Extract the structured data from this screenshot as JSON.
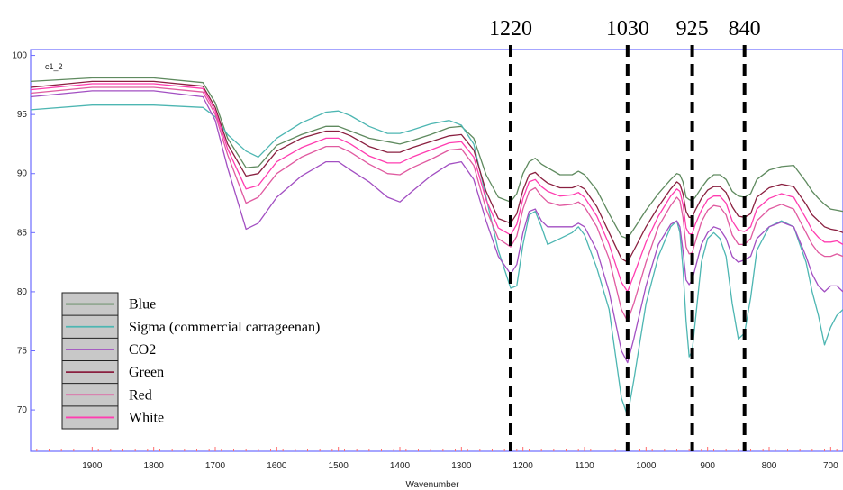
{
  "chart_data": {
    "type": "line",
    "panel_label": "c1_2",
    "xlabel": "Wavenumber",
    "ylabel": "",
    "xlim": [
      2000,
      680
    ],
    "ylim": [
      66.5,
      100.5
    ],
    "x_ticks": [
      1900,
      1800,
      1700,
      1600,
      1500,
      1400,
      1300,
      1200,
      1100,
      1000,
      900,
      800,
      700
    ],
    "y_ticks": [
      70,
      75,
      80,
      85,
      90,
      95,
      100
    ],
    "markers": [
      {
        "label": "1220",
        "x": 1220
      },
      {
        "label": "1030",
        "x": 1030
      },
      {
        "label": "925",
        "x": 925
      },
      {
        "label": "840",
        "x": 840
      }
    ],
    "x": [
      2000,
      1900,
      1800,
      1720,
      1700,
      1680,
      1650,
      1630,
      1600,
      1560,
      1520,
      1500,
      1480,
      1450,
      1420,
      1400,
      1380,
      1350,
      1320,
      1300,
      1280,
      1260,
      1240,
      1220,
      1210,
      1200,
      1190,
      1180,
      1170,
      1160,
      1140,
      1120,
      1110,
      1100,
      1080,
      1060,
      1040,
      1030,
      1020,
      1000,
      980,
      960,
      950,
      945,
      940,
      935,
      930,
      925,
      920,
      910,
      900,
      890,
      880,
      870,
      860,
      850,
      840,
      830,
      820,
      800,
      780,
      760,
      740,
      730,
      720,
      710,
      700,
      690,
      680
    ],
    "series": [
      {
        "name": "Blue",
        "color": "#5f8a5f",
        "values": [
          97.8,
          98.1,
          98.1,
          97.7,
          96.0,
          93.0,
          90.5,
          90.6,
          92.4,
          93.3,
          94.0,
          94.0,
          93.6,
          93.0,
          92.7,
          92.5,
          92.8,
          93.3,
          93.9,
          94.0,
          93.0,
          89.9,
          88.0,
          87.6,
          88.3,
          90.0,
          91.0,
          91.3,
          90.8,
          90.5,
          89.9,
          89.9,
          90.2,
          89.9,
          88.6,
          86.6,
          84.7,
          84.5,
          85.3,
          86.9,
          88.3,
          89.5,
          90.0,
          89.9,
          89.3,
          88.0,
          87.8,
          87.7,
          88.0,
          88.8,
          89.5,
          89.9,
          89.9,
          89.5,
          88.5,
          88.1,
          88.0,
          88.3,
          89.5,
          90.3,
          90.6,
          90.7,
          89.3,
          88.5,
          87.9,
          87.4,
          87.0,
          86.9,
          86.8
        ]
      },
      {
        "name": "Sigma (commercial carrageenan)",
        "color": "#4db6b2",
        "values": [
          95.4,
          95.8,
          95.8,
          95.6,
          94.8,
          93.3,
          91.9,
          91.4,
          93.0,
          94.3,
          95.2,
          95.3,
          94.9,
          94.0,
          93.4,
          93.4,
          93.7,
          94.2,
          94.5,
          94.1,
          92.5,
          88.0,
          83.5,
          80.3,
          80.5,
          84.0,
          86.5,
          86.8,
          85.5,
          84.0,
          84.5,
          85.0,
          85.5,
          84.8,
          82.0,
          78.5,
          71.0,
          69.5,
          72.5,
          79.0,
          83.0,
          85.5,
          86.0,
          85.0,
          82.0,
          77.5,
          74.5,
          75.0,
          77.5,
          82.5,
          84.5,
          85.0,
          84.5,
          83.0,
          79.0,
          76.0,
          76.5,
          79.5,
          83.5,
          85.5,
          86.0,
          85.5,
          82.5,
          80.0,
          78.0,
          75.5,
          77.0,
          78.0,
          78.5
        ]
      },
      {
        "name": "CO2",
        "color": "#a24fc2",
        "values": [
          96.5,
          97.0,
          97.0,
          96.5,
          94.5,
          90.5,
          85.3,
          85.8,
          88.0,
          89.8,
          91.0,
          91.0,
          90.3,
          89.3,
          88.0,
          87.6,
          88.5,
          89.8,
          90.8,
          91.0,
          89.5,
          86.0,
          83.0,
          81.5,
          82.3,
          85.0,
          86.8,
          87.0,
          86.0,
          85.5,
          85.5,
          85.5,
          85.8,
          85.5,
          83.5,
          80.0,
          75.0,
          74.0,
          76.0,
          80.5,
          84.0,
          85.7,
          86.0,
          85.5,
          83.5,
          81.0,
          80.6,
          81.0,
          82.0,
          84.0,
          85.0,
          85.5,
          85.3,
          84.5,
          83.0,
          82.5,
          82.7,
          83.0,
          84.5,
          85.5,
          85.9,
          85.5,
          83.0,
          81.5,
          80.5,
          80.0,
          80.5,
          80.5,
          80.0
        ]
      },
      {
        "name": "Green",
        "color": "#8a2040",
        "values": [
          97.3,
          97.8,
          97.8,
          97.4,
          95.6,
          92.5,
          89.8,
          90.0,
          91.9,
          93.0,
          93.6,
          93.6,
          93.2,
          92.3,
          91.8,
          91.8,
          92.2,
          92.7,
          93.2,
          93.3,
          92.0,
          88.5,
          86.2,
          85.8,
          86.6,
          88.6,
          89.9,
          90.1,
          89.6,
          89.2,
          88.8,
          88.8,
          89.0,
          88.7,
          87.2,
          85.0,
          82.8,
          82.5,
          83.5,
          85.5,
          87.2,
          88.7,
          89.3,
          89.1,
          88.3,
          86.8,
          86.3,
          86.3,
          86.9,
          87.9,
          88.6,
          88.9,
          88.9,
          88.4,
          87.2,
          86.4,
          86.3,
          86.6,
          88.0,
          88.8,
          89.1,
          88.9,
          87.4,
          86.5,
          86.0,
          85.5,
          85.3,
          85.2,
          85.0
        ]
      },
      {
        "name": "Red",
        "color": "#e05aa0",
        "values": [
          96.8,
          97.3,
          97.3,
          96.9,
          95.0,
          91.6,
          87.5,
          88.0,
          90.0,
          91.4,
          92.3,
          92.3,
          91.8,
          90.8,
          90.0,
          89.9,
          90.5,
          91.2,
          92.0,
          92.1,
          90.7,
          87.0,
          84.5,
          83.8,
          84.7,
          87.0,
          88.5,
          88.8,
          88.1,
          87.6,
          87.3,
          87.4,
          87.6,
          87.2,
          85.5,
          82.8,
          78.5,
          77.5,
          79.0,
          82.5,
          85.5,
          87.3,
          88.0,
          87.7,
          86.3,
          83.8,
          83.2,
          83.3,
          84.2,
          85.9,
          86.9,
          87.3,
          87.2,
          86.5,
          84.8,
          84.0,
          84.0,
          84.5,
          86.0,
          87.0,
          87.4,
          87.0,
          85.0,
          84.0,
          83.3,
          83.0,
          83.0,
          83.2,
          83.0
        ]
      },
      {
        "name": "White",
        "color": "#ff3db0",
        "values": [
          97.1,
          97.6,
          97.6,
          97.2,
          95.3,
          92.1,
          88.7,
          89.0,
          91.0,
          92.2,
          93.0,
          93.0,
          92.5,
          91.5,
          90.9,
          90.9,
          91.4,
          92.0,
          92.6,
          92.7,
          91.4,
          87.8,
          85.4,
          84.8,
          85.7,
          87.9,
          89.3,
          89.5,
          88.9,
          88.5,
          88.1,
          88.2,
          88.4,
          88.0,
          86.4,
          84.0,
          80.8,
          80.0,
          81.4,
          84.2,
          86.4,
          88.1,
          88.7,
          88.5,
          87.4,
          85.4,
          84.9,
          84.9,
          85.7,
          86.9,
          87.8,
          88.1,
          88.1,
          87.5,
          86.0,
          85.2,
          85.1,
          85.5,
          87.0,
          87.9,
          88.3,
          88.0,
          86.2,
          85.2,
          84.6,
          84.2,
          84.2,
          84.3,
          84.0
        ]
      }
    ]
  }
}
